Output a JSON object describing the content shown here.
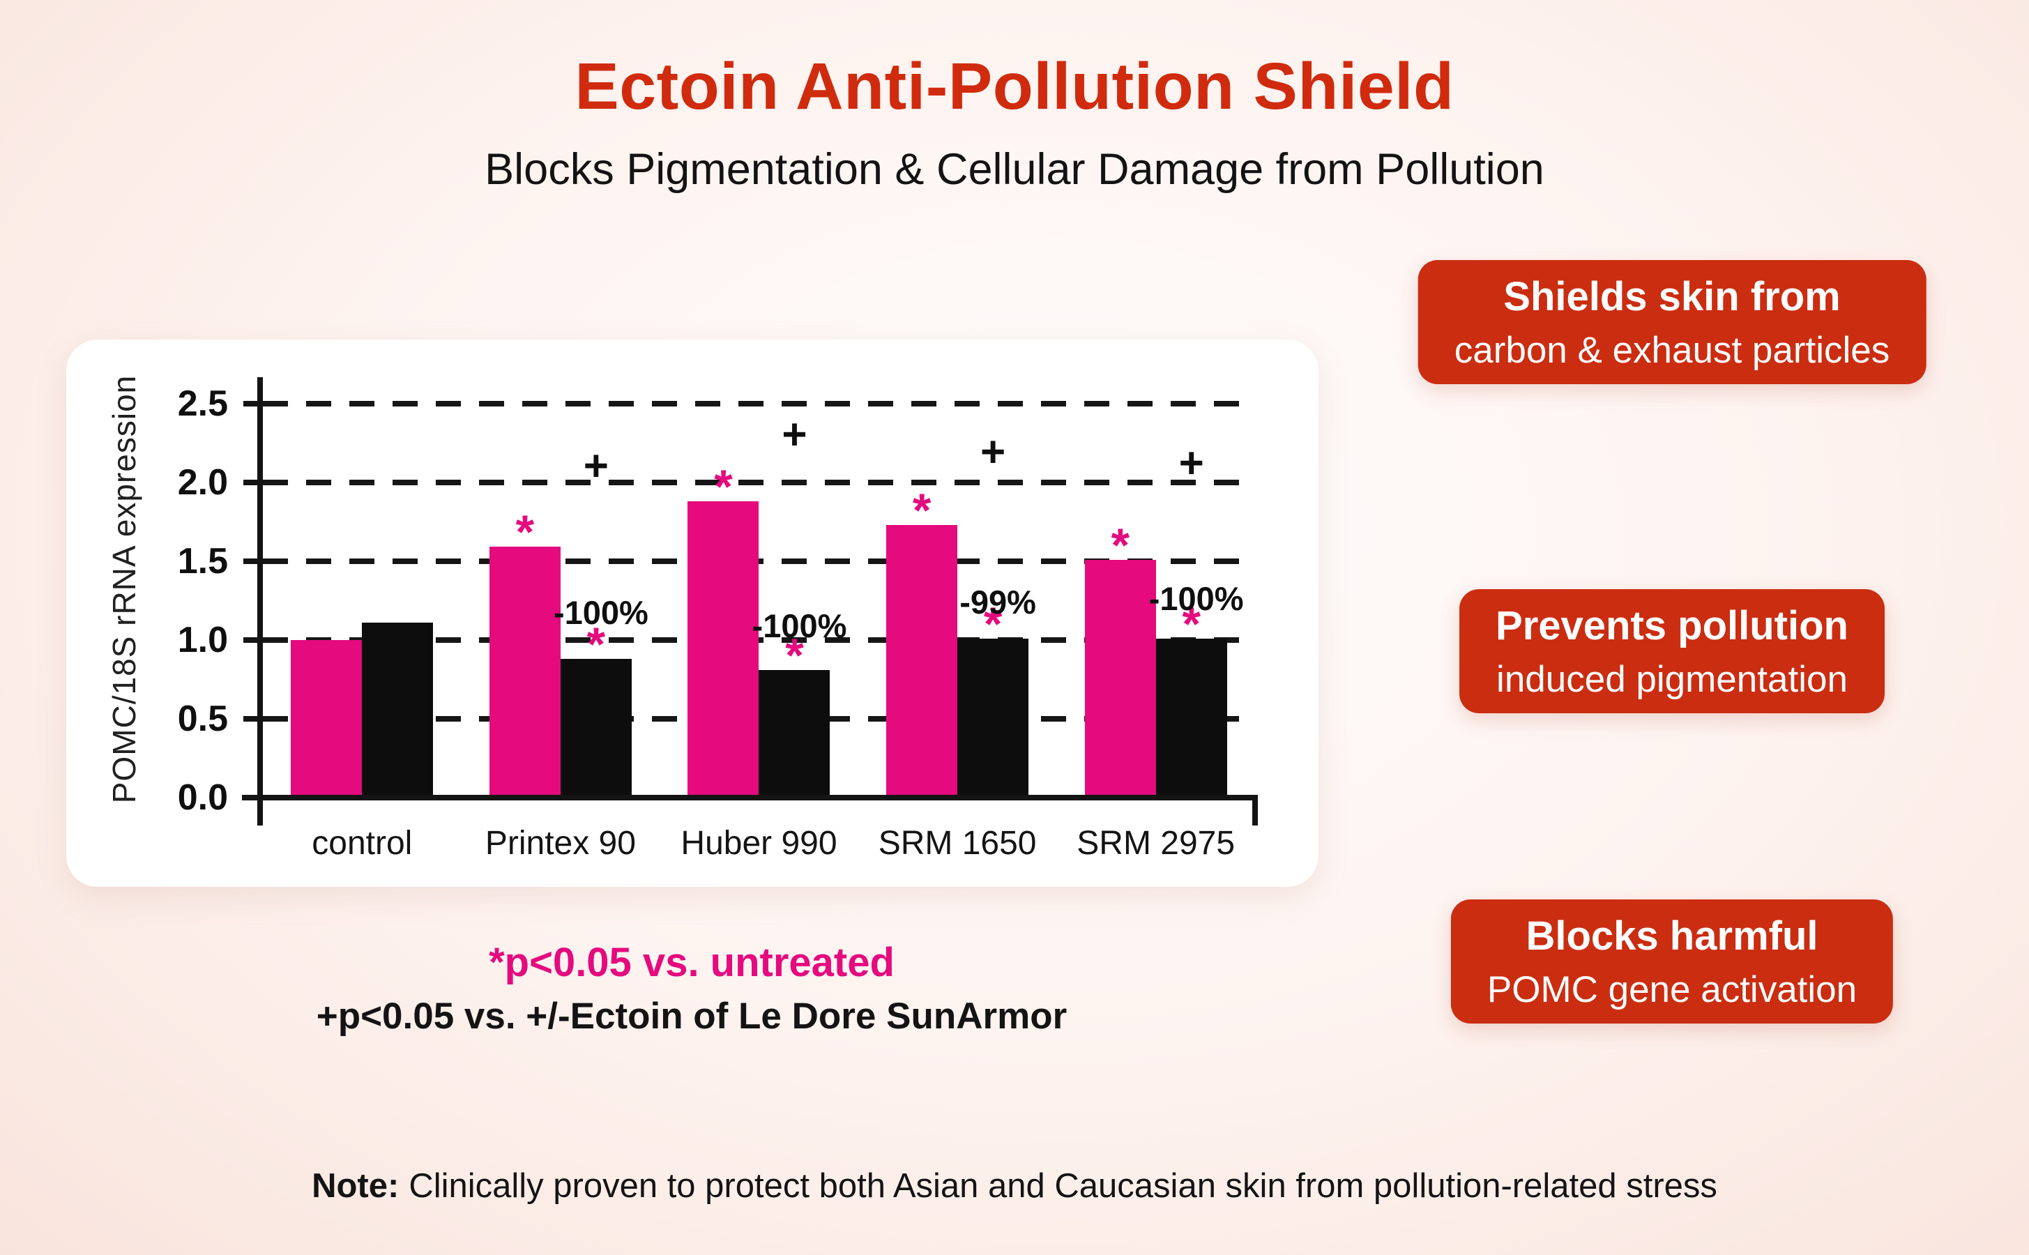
{
  "page": {
    "title": "Ectoin Anti-Pollution Shield",
    "subtitle": "Blocks Pigmentation & Cellular Damage from Pollution"
  },
  "colors": {
    "accent_red": "#d02b0e",
    "callout_red": "#cb2d11",
    "pink": "#e50a7e",
    "bar_black": "#0d0d0d"
  },
  "chart_data": {
    "type": "bar",
    "title": "",
    "xlabel": "",
    "ylabel": "POMC/18S rRNA expression",
    "ylim": [
      0,
      2.64
    ],
    "yticks": [
      "0.0",
      "0.5",
      "1.0",
      "1.5",
      "2.0",
      "2.5"
    ],
    "grid": "horizontal dashed lines at 0.5, 1.0, 1.5, 2.0, 2.5",
    "legend_position": "none",
    "categories": [
      "control",
      "Printex 90",
      "Huber 990",
      "SRM 1650",
      "SRM 2975"
    ],
    "series": [
      {
        "name": "pink",
        "color": "#e50a7e",
        "values": [
          1.0,
          1.59,
          1.88,
          1.73,
          1.51
        ]
      },
      {
        "name": "black",
        "color": "#0d0d0d",
        "values": [
          1.11,
          0.88,
          0.81,
          1.01,
          1.01
        ]
      }
    ],
    "annotations": {
      "star_symbol": "*",
      "plus_symbol": "+",
      "pink_bar_stars": [
        false,
        true,
        true,
        true,
        true
      ],
      "black_bar_stars": [
        false,
        true,
        true,
        true,
        true
      ],
      "percent_labels": [
        "",
        "-100%",
        "-100%",
        "-99%",
        "-100%"
      ],
      "percent_label_y": [
        0,
        1.17,
        1.09,
        1.24,
        1.26
      ],
      "plus_marker_y": [
        0,
        2.1,
        2.3,
        2.19,
        2.12
      ]
    }
  },
  "legend": {
    "star_note": "*p<0.05 vs. untreated",
    "plus_note": "+p<0.05 vs. +/-Ectoin of Le Dore SunArmor"
  },
  "callouts": [
    {
      "line1": "Shields skin from",
      "line2": "carbon & exhaust particles"
    },
    {
      "line1": "Prevents pollution",
      "line2": "induced pigmentation"
    },
    {
      "line1": "Blocks harmful",
      "line2": "POMC gene activation"
    }
  ],
  "note": {
    "label": "Note:",
    "text": "Clinically proven to protect both Asian and Caucasian skin from pollution-related stress"
  }
}
